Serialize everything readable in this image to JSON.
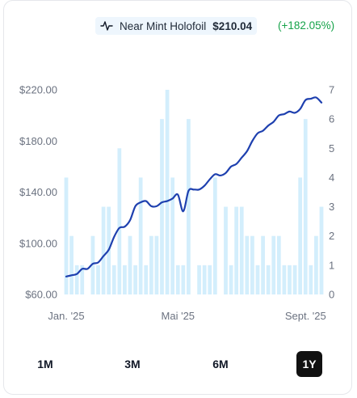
{
  "legend": {
    "icon": "line-chart-icon",
    "label": "Near Mint Holofoil",
    "price": "$210.04",
    "change": "(+182.05%)",
    "change_color": "#16a34a"
  },
  "ranges": {
    "options": [
      "1M",
      "3M",
      "6M",
      "1Y"
    ],
    "selected": "1Y"
  },
  "colors": {
    "line": "#1e40af",
    "bars": "#d3eefc",
    "axis_text": "#6b7280"
  },
  "chart_data": {
    "type": "line",
    "title": "",
    "x_tick_labels": [
      "Jan. '25",
      "Mai '25",
      "Sept. '25"
    ],
    "x_tick_index": [
      0,
      21,
      45
    ],
    "ylim": [
      60,
      220
    ],
    "y_ticks": [
      "$220.00",
      "$180.00",
      "$140.00",
      "$100.00",
      "$60.00"
    ],
    "y2lim": [
      0,
      7
    ],
    "y2_ticks": [
      "7",
      "6",
      "5",
      "4",
      "3",
      "2",
      "1",
      "0"
    ],
    "series": [
      {
        "type": "line",
        "values": [
          74,
          75,
          76,
          80,
          80,
          84,
          85,
          90,
          95,
          105,
          112,
          113,
          118,
          129,
          132,
          133,
          129,
          129,
          132,
          133,
          135,
          138,
          125,
          141,
          142,
          142,
          145,
          150,
          154,
          153,
          155,
          160,
          162,
          167,
          172,
          180,
          186,
          188,
          192,
          195,
          200,
          201,
          203,
          202,
          205,
          212,
          213,
          214,
          210
        ]
      },
      {
        "type": "bar",
        "values": [
          4,
          2,
          1,
          1,
          0,
          2,
          1,
          3,
          3,
          1,
          5,
          1,
          2,
          1,
          4,
          1,
          2,
          2,
          6,
          7,
          4,
          1,
          1,
          6,
          0,
          1,
          1,
          1,
          4,
          0,
          3,
          1,
          3,
          3,
          2,
          2,
          1,
          2,
          1,
          2,
          2,
          1,
          1,
          1,
          4,
          6,
          1,
          2,
          3
        ]
      }
    ]
  }
}
